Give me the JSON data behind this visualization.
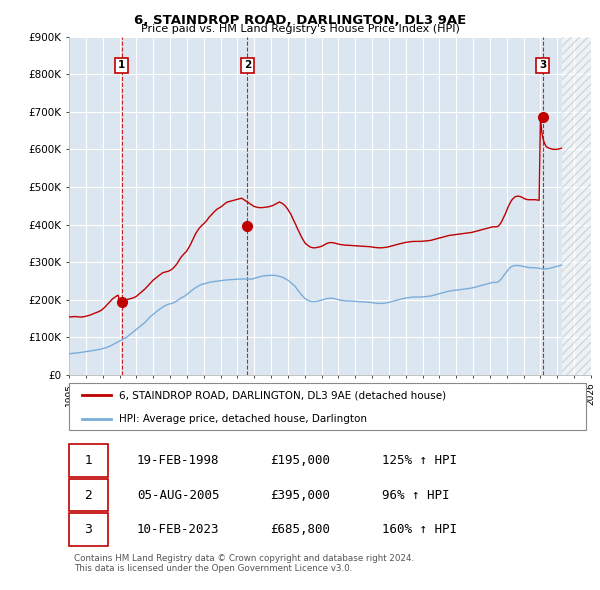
{
  "title": "6, STAINDROP ROAD, DARLINGTON, DL3 9AE",
  "subtitle": "Price paid vs. HM Land Registry's House Price Index (HPI)",
  "ylim": [
    0,
    900000
  ],
  "yticks": [
    0,
    100000,
    200000,
    300000,
    400000,
    500000,
    600000,
    700000,
    800000,
    900000
  ],
  "ytick_labels": [
    "£0",
    "£100K",
    "£200K",
    "£300K",
    "£400K",
    "£500K",
    "£600K",
    "£700K",
    "£800K",
    "£900K"
  ],
  "background_color": "#ffffff",
  "plot_bg_color": "#dce6f0",
  "grid_color": "#ffffff",
  "sale_line_color": "#c00000",
  "hpi_line_color": "#7aaddb",
  "marker_color": "#c00000",
  "sale_label": "6, STAINDROP ROAD, DARLINGTON, DL3 9AE (detached house)",
  "hpi_label": "HPI: Average price, detached house, Darlington",
  "transactions": [
    {
      "num": 1,
      "date": "19-FEB-1998",
      "price": 195000,
      "pct": "125%",
      "dir": "↑",
      "x_year": 1998.12
    },
    {
      "num": 2,
      "date": "05-AUG-2005",
      "price": 395000,
      "pct": "96%",
      "dir": "↑",
      "x_year": 2005.59
    },
    {
      "num": 3,
      "date": "10-FEB-2023",
      "price": 685800,
      "pct": "160%",
      "dir": "↑",
      "x_year": 2023.12
    }
  ],
  "vline_color": "#c00000",
  "footnote": "Contains HM Land Registry data © Crown copyright and database right 2024.\nThis data is licensed under the Open Government Licence v3.0.",
  "xmin": 1995,
  "xmax": 2026,
  "legend_box_color": "#c00000",
  "hpi_data_x": [
    1995.0,
    1995.08,
    1995.17,
    1995.25,
    1995.33,
    1995.42,
    1995.5,
    1995.58,
    1995.67,
    1995.75,
    1995.83,
    1995.92,
    1996.0,
    1996.08,
    1996.17,
    1996.25,
    1996.33,
    1996.42,
    1996.5,
    1996.58,
    1996.67,
    1996.75,
    1996.83,
    1996.92,
    1997.0,
    1997.08,
    1997.17,
    1997.25,
    1997.33,
    1997.42,
    1997.5,
    1997.58,
    1997.67,
    1997.75,
    1997.83,
    1997.92,
    1998.0,
    1998.08,
    1998.17,
    1998.25,
    1998.33,
    1998.42,
    1998.5,
    1998.58,
    1998.67,
    1998.75,
    1998.83,
    1998.92,
    1999.0,
    1999.08,
    1999.17,
    1999.25,
    1999.33,
    1999.42,
    1999.5,
    1999.58,
    1999.67,
    1999.75,
    1999.83,
    1999.92,
    2000.0,
    2000.08,
    2000.17,
    2000.25,
    2000.33,
    2000.42,
    2000.5,
    2000.58,
    2000.67,
    2000.75,
    2000.83,
    2000.92,
    2001.0,
    2001.08,
    2001.17,
    2001.25,
    2001.33,
    2001.42,
    2001.5,
    2001.58,
    2001.67,
    2001.75,
    2001.83,
    2001.92,
    2002.0,
    2002.08,
    2002.17,
    2002.25,
    2002.33,
    2002.42,
    2002.5,
    2002.58,
    2002.67,
    2002.75,
    2002.83,
    2002.92,
    2003.0,
    2003.08,
    2003.17,
    2003.25,
    2003.33,
    2003.42,
    2003.5,
    2003.58,
    2003.67,
    2003.75,
    2003.83,
    2003.92,
    2004.0,
    2004.08,
    2004.17,
    2004.25,
    2004.33,
    2004.42,
    2004.5,
    2004.58,
    2004.67,
    2004.75,
    2004.83,
    2004.92,
    2005.0,
    2005.08,
    2005.17,
    2005.25,
    2005.33,
    2005.42,
    2005.5,
    2005.58,
    2005.67,
    2005.75,
    2005.83,
    2005.92,
    2006.0,
    2006.08,
    2006.17,
    2006.25,
    2006.33,
    2006.42,
    2006.5,
    2006.58,
    2006.67,
    2006.75,
    2006.83,
    2006.92,
    2007.0,
    2007.08,
    2007.17,
    2007.25,
    2007.33,
    2007.42,
    2007.5,
    2007.58,
    2007.67,
    2007.75,
    2007.83,
    2007.92,
    2008.0,
    2008.08,
    2008.17,
    2008.25,
    2008.33,
    2008.42,
    2008.5,
    2008.58,
    2008.67,
    2008.75,
    2008.83,
    2008.92,
    2009.0,
    2009.08,
    2009.17,
    2009.25,
    2009.33,
    2009.42,
    2009.5,
    2009.58,
    2009.67,
    2009.75,
    2009.83,
    2009.92,
    2010.0,
    2010.08,
    2010.17,
    2010.25,
    2010.33,
    2010.42,
    2010.5,
    2010.58,
    2010.67,
    2010.75,
    2010.83,
    2010.92,
    2011.0,
    2011.08,
    2011.17,
    2011.25,
    2011.33,
    2011.42,
    2011.5,
    2011.58,
    2011.67,
    2011.75,
    2011.83,
    2011.92,
    2012.0,
    2012.08,
    2012.17,
    2012.25,
    2012.33,
    2012.42,
    2012.5,
    2012.58,
    2012.67,
    2012.75,
    2012.83,
    2012.92,
    2013.0,
    2013.08,
    2013.17,
    2013.25,
    2013.33,
    2013.42,
    2013.5,
    2013.58,
    2013.67,
    2013.75,
    2013.83,
    2013.92,
    2014.0,
    2014.08,
    2014.17,
    2014.25,
    2014.33,
    2014.42,
    2014.5,
    2014.58,
    2014.67,
    2014.75,
    2014.83,
    2014.92,
    2015.0,
    2015.08,
    2015.17,
    2015.25,
    2015.33,
    2015.42,
    2015.5,
    2015.58,
    2015.67,
    2015.75,
    2015.83,
    2015.92,
    2016.0,
    2016.08,
    2016.17,
    2016.25,
    2016.33,
    2016.42,
    2016.5,
    2016.58,
    2016.67,
    2016.75,
    2016.83,
    2016.92,
    2017.0,
    2017.08,
    2017.17,
    2017.25,
    2017.33,
    2017.42,
    2017.5,
    2017.58,
    2017.67,
    2017.75,
    2017.83,
    2017.92,
    2018.0,
    2018.08,
    2018.17,
    2018.25,
    2018.33,
    2018.42,
    2018.5,
    2018.58,
    2018.67,
    2018.75,
    2018.83,
    2018.92,
    2019.0,
    2019.08,
    2019.17,
    2019.25,
    2019.33,
    2019.42,
    2019.5,
    2019.58,
    2019.67,
    2019.75,
    2019.83,
    2019.92,
    2020.0,
    2020.08,
    2020.17,
    2020.25,
    2020.33,
    2020.42,
    2020.5,
    2020.58,
    2020.67,
    2020.75,
    2020.83,
    2020.92,
    2021.0,
    2021.08,
    2021.17,
    2021.25,
    2021.33,
    2021.42,
    2021.5,
    2021.58,
    2021.67,
    2021.75,
    2021.83,
    2021.92,
    2022.0,
    2022.08,
    2022.17,
    2022.25,
    2022.33,
    2022.42,
    2022.5,
    2022.58,
    2022.67,
    2022.75,
    2022.83,
    2022.92,
    2023.0,
    2023.08,
    2023.17,
    2023.25,
    2023.33,
    2023.42,
    2023.5,
    2023.58,
    2023.67,
    2023.75,
    2023.83,
    2023.92,
    2024.0,
    2024.08,
    2024.17,
    2024.25
  ],
  "hpi_data_y": [
    56000,
    56500,
    57000,
    57500,
    57800,
    58200,
    58500,
    59000,
    59500,
    60000,
    60500,
    61000,
    62000,
    62500,
    63000,
    63500,
    64000,
    64500,
    65000,
    65800,
    66500,
    67200,
    68000,
    68800,
    70000,
    71000,
    72000,
    73000,
    74500,
    76000,
    78000,
    80000,
    82000,
    84000,
    86000,
    88000,
    90000,
    92000,
    94000,
    96000,
    98000,
    100000,
    103000,
    106000,
    109000,
    112000,
    115000,
    118000,
    121000,
    124000,
    127000,
    130000,
    133000,
    136000,
    139000,
    143000,
    147000,
    151000,
    155000,
    158000,
    161000,
    164000,
    167000,
    170000,
    173000,
    176000,
    179000,
    181000,
    183000,
    185000,
    187000,
    188000,
    189000,
    190000,
    191000,
    193000,
    195000,
    197000,
    200000,
    202000,
    205000,
    207000,
    209000,
    211000,
    214000,
    217000,
    220000,
    223000,
    226000,
    229000,
    232000,
    234000,
    236000,
    238000,
    240000,
    241000,
    242000,
    243000,
    244000,
    245000,
    246000,
    247000,
    247500,
    248000,
    248500,
    249000,
    249500,
    250000,
    250500,
    251000,
    251500,
    252000,
    252500,
    252800,
    253000,
    253200,
    253500,
    253800,
    254000,
    254200,
    254500,
    254800,
    255000,
    255000,
    255000,
    255000,
    255000,
    255000,
    255000,
    255000,
    255000,
    255000,
    257000,
    258000,
    259000,
    260000,
    261000,
    262000,
    263000,
    263500,
    264000,
    264200,
    264500,
    264800,
    265000,
    265000,
    265000,
    264500,
    264000,
    263000,
    262000,
    261000,
    260000,
    258000,
    256000,
    254000,
    252000,
    249000,
    246000,
    243000,
    240000,
    236000,
    231000,
    226000,
    221000,
    216000,
    212000,
    208000,
    204000,
    201000,
    199000,
    197000,
    196000,
    195500,
    195000,
    195000,
    195500,
    196000,
    197000,
    198000,
    199000,
    200000,
    201000,
    202000,
    203000,
    203500,
    204000,
    204000,
    203500,
    203000,
    202000,
    201000,
    200000,
    199000,
    198500,
    198000,
    197500,
    197000,
    197000,
    196800,
    196500,
    196200,
    196000,
    195800,
    195500,
    195200,
    195000,
    194800,
    194500,
    194200,
    194000,
    193800,
    193500,
    193200,
    193000,
    192800,
    192000,
    191500,
    191000,
    190500,
    190200,
    190000,
    190000,
    190200,
    190500,
    191000,
    191500,
    192000,
    193000,
    194000,
    195000,
    196000,
    197000,
    198000,
    199000,
    200000,
    201000,
    202000,
    203000,
    204000,
    204500,
    205000,
    205500,
    206000,
    206500,
    207000,
    207000,
    207000,
    207000,
    207000,
    207000,
    207200,
    207500,
    207800,
    208000,
    208500,
    209000,
    209500,
    210000,
    211000,
    212000,
    213000,
    214000,
    215000,
    216000,
    217000,
    218000,
    219000,
    220000,
    221000,
    222000,
    223000,
    223500,
    224000,
    224500,
    225000,
    225500,
    226000,
    226500,
    227000,
    227500,
    228000,
    228500,
    229000,
    229500,
    230000,
    230500,
    231000,
    232000,
    233000,
    234000,
    235000,
    236000,
    237000,
    238000,
    239000,
    240000,
    241000,
    242000,
    243000,
    244000,
    245000,
    246000,
    246000,
    246000,
    246000,
    248000,
    251000,
    255000,
    260000,
    265000,
    270000,
    275000,
    280000,
    284000,
    287000,
    289000,
    290000,
    291000,
    291000,
    291000,
    290500,
    290000,
    289000,
    288000,
    287000,
    286500,
    286000,
    285500,
    285000,
    285000,
    285000,
    285000,
    284500,
    284000,
    283500,
    283000,
    282500,
    282000,
    282000,
    282000,
    282500,
    283000,
    284000,
    285000,
    286000,
    287000,
    288000,
    289000,
    290000,
    291000,
    292000
  ],
  "sale_data_x": [
    1995.0,
    1995.08,
    1995.17,
    1995.25,
    1995.33,
    1995.42,
    1995.5,
    1995.58,
    1995.67,
    1995.75,
    1995.83,
    1995.92,
    1996.0,
    1996.08,
    1996.17,
    1996.25,
    1996.33,
    1996.42,
    1996.5,
    1996.58,
    1996.67,
    1996.75,
    1996.83,
    1996.92,
    1997.0,
    1997.08,
    1997.17,
    1997.25,
    1997.33,
    1997.42,
    1997.5,
    1997.58,
    1997.67,
    1997.75,
    1997.83,
    1997.92,
    1998.0,
    1998.08,
    1998.17,
    1998.25,
    1998.33,
    1998.42,
    1998.5,
    1998.58,
    1998.67,
    1998.75,
    1998.83,
    1998.92,
    1999.0,
    1999.08,
    1999.17,
    1999.25,
    1999.33,
    1999.42,
    1999.5,
    1999.58,
    1999.67,
    1999.75,
    1999.83,
    1999.92,
    2000.0,
    2000.08,
    2000.17,
    2000.25,
    2000.33,
    2000.42,
    2000.5,
    2000.58,
    2000.67,
    2000.75,
    2000.83,
    2000.92,
    2001.0,
    2001.08,
    2001.17,
    2001.25,
    2001.33,
    2001.42,
    2001.5,
    2001.58,
    2001.67,
    2001.75,
    2001.83,
    2001.92,
    2002.0,
    2002.08,
    2002.17,
    2002.25,
    2002.33,
    2002.42,
    2002.5,
    2002.58,
    2002.67,
    2002.75,
    2002.83,
    2002.92,
    2003.0,
    2003.08,
    2003.17,
    2003.25,
    2003.33,
    2003.42,
    2003.5,
    2003.58,
    2003.67,
    2003.75,
    2003.83,
    2003.92,
    2004.0,
    2004.08,
    2004.17,
    2004.25,
    2004.33,
    2004.42,
    2004.5,
    2004.58,
    2004.67,
    2004.75,
    2004.83,
    2004.92,
    2005.0,
    2005.08,
    2005.17,
    2005.25,
    2005.33,
    2005.42,
    2005.5,
    2005.58,
    2005.67,
    2005.75,
    2005.83,
    2005.92,
    2006.0,
    2006.08,
    2006.17,
    2006.25,
    2006.33,
    2006.42,
    2006.5,
    2006.58,
    2006.67,
    2006.75,
    2006.83,
    2006.92,
    2007.0,
    2007.08,
    2007.17,
    2007.25,
    2007.33,
    2007.42,
    2007.5,
    2007.58,
    2007.67,
    2007.75,
    2007.83,
    2007.92,
    2008.0,
    2008.08,
    2008.17,
    2008.25,
    2008.33,
    2008.42,
    2008.5,
    2008.58,
    2008.67,
    2008.75,
    2008.83,
    2008.92,
    2009.0,
    2009.08,
    2009.17,
    2009.25,
    2009.33,
    2009.42,
    2009.5,
    2009.58,
    2009.67,
    2009.75,
    2009.83,
    2009.92,
    2010.0,
    2010.08,
    2010.17,
    2010.25,
    2010.33,
    2010.42,
    2010.5,
    2010.58,
    2010.67,
    2010.75,
    2010.83,
    2010.92,
    2011.0,
    2011.08,
    2011.17,
    2011.25,
    2011.33,
    2011.42,
    2011.5,
    2011.58,
    2011.67,
    2011.75,
    2011.83,
    2011.92,
    2012.0,
    2012.08,
    2012.17,
    2012.25,
    2012.33,
    2012.42,
    2012.5,
    2012.58,
    2012.67,
    2012.75,
    2012.83,
    2012.92,
    2013.0,
    2013.08,
    2013.17,
    2013.25,
    2013.33,
    2013.42,
    2013.5,
    2013.58,
    2013.67,
    2013.75,
    2013.83,
    2013.92,
    2014.0,
    2014.08,
    2014.17,
    2014.25,
    2014.33,
    2014.42,
    2014.5,
    2014.58,
    2014.67,
    2014.75,
    2014.83,
    2014.92,
    2015.0,
    2015.08,
    2015.17,
    2015.25,
    2015.33,
    2015.42,
    2015.5,
    2015.58,
    2015.67,
    2015.75,
    2015.83,
    2015.92,
    2016.0,
    2016.08,
    2016.17,
    2016.25,
    2016.33,
    2016.42,
    2016.5,
    2016.58,
    2016.67,
    2016.75,
    2016.83,
    2016.92,
    2017.0,
    2017.08,
    2017.17,
    2017.25,
    2017.33,
    2017.42,
    2017.5,
    2017.58,
    2017.67,
    2017.75,
    2017.83,
    2017.92,
    2018.0,
    2018.08,
    2018.17,
    2018.25,
    2018.33,
    2018.42,
    2018.5,
    2018.58,
    2018.67,
    2018.75,
    2018.83,
    2018.92,
    2019.0,
    2019.08,
    2019.17,
    2019.25,
    2019.33,
    2019.42,
    2019.5,
    2019.58,
    2019.67,
    2019.75,
    2019.83,
    2019.92,
    2020.0,
    2020.08,
    2020.17,
    2020.25,
    2020.33,
    2020.42,
    2020.5,
    2020.58,
    2020.67,
    2020.75,
    2020.83,
    2020.92,
    2021.0,
    2021.08,
    2021.17,
    2021.25,
    2021.33,
    2021.42,
    2021.5,
    2021.58,
    2021.67,
    2021.75,
    2021.83,
    2021.92,
    2022.0,
    2022.08,
    2022.17,
    2022.25,
    2022.33,
    2022.42,
    2022.5,
    2022.58,
    2022.67,
    2022.75,
    2022.83,
    2022.92,
    2023.0,
    2023.08,
    2023.17,
    2023.25,
    2023.33,
    2023.42,
    2023.5,
    2023.58,
    2023.67,
    2023.75,
    2023.83,
    2023.92,
    2024.0,
    2024.08,
    2024.17,
    2024.25
  ],
  "sale_data_y": [
    155000,
    154000,
    154500,
    155000,
    155200,
    154800,
    154500,
    154000,
    153800,
    154000,
    154500,
    155000,
    156000,
    157000,
    158000,
    159000,
    160500,
    162000,
    163500,
    165000,
    166500,
    168000,
    170000,
    172000,
    175000,
    178000,
    182000,
    186000,
    190000,
    194000,
    198000,
    202000,
    205000,
    208000,
    210000,
    212000,
    195000,
    196000,
    197000,
    198000,
    199000,
    200000,
    201000,
    202000,
    203000,
    204000,
    205000,
    207000,
    209000,
    212000,
    215000,
    218000,
    221000,
    225000,
    228000,
    232000,
    236000,
    240000,
    244000,
    248000,
    252000,
    255000,
    258000,
    261000,
    264000,
    267000,
    270000,
    272000,
    273000,
    274000,
    275000,
    276000,
    278000,
    280000,
    283000,
    287000,
    291000,
    296000,
    302000,
    308000,
    314000,
    318000,
    322000,
    326000,
    330000,
    336000,
    343000,
    350000,
    358000,
    366000,
    374000,
    380000,
    386000,
    391000,
    395000,
    399000,
    402000,
    406000,
    410000,
    415000,
    420000,
    424000,
    428000,
    432000,
    436000,
    439000,
    442000,
    444000,
    446000,
    449000,
    452000,
    455000,
    458000,
    460000,
    461000,
    462000,
    463000,
    464000,
    465000,
    466000,
    467000,
    468000,
    469000,
    470000,
    468000,
    465000,
    463000,
    460000,
    458000,
    455000,
    453000,
    450000,
    448000,
    447000,
    446000,
    445000,
    445000,
    445000,
    445000,
    445500,
    446000,
    446500,
    447000,
    448000,
    449000,
    450000,
    452000,
    454000,
    456000,
    458000,
    460000,
    458000,
    456000,
    453000,
    450000,
    445000,
    440000,
    434000,
    428000,
    420000,
    412000,
    404000,
    396000,
    388000,
    380000,
    372000,
    365000,
    358000,
    352000,
    348000,
    345000,
    342000,
    340000,
    339000,
    338000,
    338000,
    338500,
    339000,
    340000,
    341000,
    342000,
    344000,
    346000,
    348000,
    350000,
    351000,
    352000,
    352000,
    351500,
    351000,
    350000,
    349000,
    348000,
    347000,
    346500,
    346000,
    345500,
    345000,
    345000,
    344800,
    344500,
    344200,
    344000,
    343800,
    343500,
    343200,
    343000,
    342800,
    342500,
    342200,
    342000,
    341800,
    341500,
    341200,
    341000,
    340800,
    340000,
    339500,
    339000,
    338500,
    338200,
    338000,
    338000,
    338200,
    338500,
    339000,
    339500,
    340000,
    341000,
    342000,
    343000,
    344000,
    345000,
    346000,
    347000,
    348000,
    349000,
    350000,
    351000,
    352000,
    352500,
    353000,
    353500,
    354000,
    354500,
    355000,
    355000,
    355000,
    355000,
    355000,
    355000,
    355200,
    355500,
    355800,
    356000,
    356500,
    357000,
    357500,
    358000,
    359000,
    360000,
    361000,
    362000,
    363000,
    364000,
    365000,
    366000,
    367000,
    368000,
    369000,
    370000,
    371000,
    371500,
    372000,
    372500,
    373000,
    373500,
    374000,
    374500,
    375000,
    375500,
    376000,
    376500,
    377000,
    377500,
    378000,
    378500,
    379000,
    380000,
    381000,
    382000,
    383000,
    384000,
    385000,
    386000,
    387000,
    388000,
    389000,
    390000,
    391000,
    392000,
    393000,
    394000,
    394000,
    394000,
    394000,
    396000,
    400000,
    406000,
    413000,
    421000,
    429000,
    438000,
    447000,
    455000,
    462000,
    467000,
    471000,
    474000,
    475000,
    475500,
    475000,
    474000,
    472000,
    470000,
    468000,
    467000,
    466000,
    466000,
    466000,
    466000,
    466000,
    466000,
    465500,
    465000,
    464500,
    685800,
    645000,
    625000,
    615000,
    608000,
    605000,
    603000,
    602000,
    601000,
    600000,
    600000,
    600000,
    600000,
    601000,
    602000,
    603000
  ]
}
